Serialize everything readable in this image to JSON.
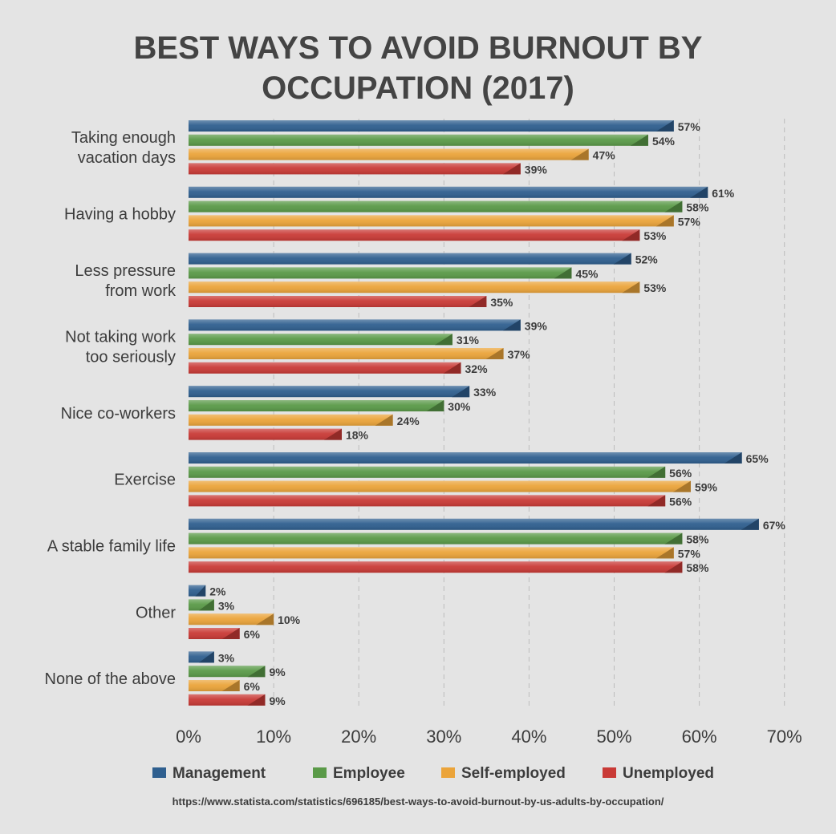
{
  "chart_data": {
    "type": "bar",
    "orientation": "horizontal",
    "title": "BEST WAYS TO AVOID BURNOUT BY OCCUPATION (2017)",
    "title_lines": [
      "BEST WAYS TO AVOID BURNOUT BY",
      "OCCUPATION (2017)"
    ],
    "categories": [
      "Taking enough vacation days",
      "Having a hobby",
      "Less pressure from work",
      "Not taking work too seriously",
      "Nice co-workers",
      "Exercise",
      "A stable family life",
      "Other",
      "None of the above"
    ],
    "category_lines": [
      [
        "Taking enough",
        "vacation days"
      ],
      [
        "Having a hobby"
      ],
      [
        "Less pressure",
        "from work"
      ],
      [
        "Not taking work",
        "too seriously"
      ],
      [
        "Nice co-workers"
      ],
      [
        "Exercise"
      ],
      [
        "A stable family life"
      ],
      [
        "Other"
      ],
      [
        "None of the above"
      ]
    ],
    "series": [
      {
        "name": "Management",
        "color": "#2f5f8f",
        "values": [
          57,
          61,
          52,
          39,
          33,
          65,
          67,
          2,
          3
        ]
      },
      {
        "name": "Employee",
        "color": "#5a9a48",
        "values": [
          54,
          58,
          45,
          31,
          30,
          56,
          58,
          3,
          9
        ]
      },
      {
        "name": "Self-employed",
        "color": "#eba43a",
        "values": [
          47,
          57,
          53,
          37,
          24,
          59,
          57,
          10,
          6
        ]
      },
      {
        "name": "Unemployed",
        "color": "#c93a36",
        "values": [
          39,
          53,
          35,
          32,
          18,
          56,
          58,
          6,
          9
        ]
      }
    ],
    "value_suffix": "%",
    "xlim": [
      0,
      70
    ],
    "xticks": [
      "0%",
      "10%",
      "20%",
      "30%",
      "40%",
      "50%",
      "60%",
      "70%"
    ],
    "grid": "vertical dashed",
    "legend_position": "bottom"
  },
  "source": "https://www.statista.com/statistics/696185/best-ways-to-avoid-burnout-by-us-adults-by-occupation/"
}
